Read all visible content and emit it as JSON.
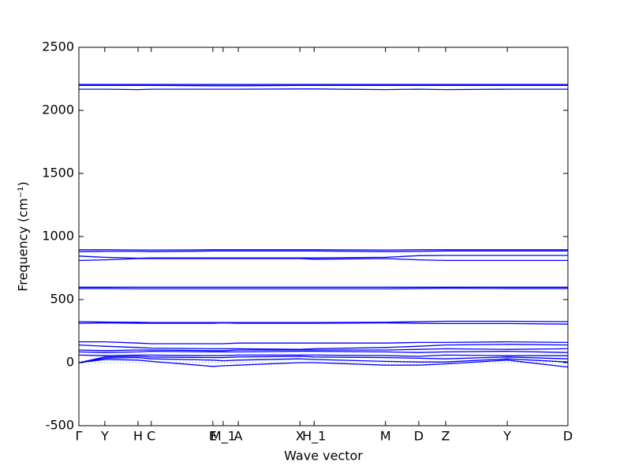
{
  "chart_data": {
    "type": "line",
    "xlabel": "Wave vector",
    "ylabel": "Frequency (cm⁻¹)",
    "x": [
      0,
      0.053,
      0.121,
      0.148,
      0.274,
      0.295,
      0.326,
      0.452,
      0.481,
      0.627,
      0.695,
      0.75,
      0.876,
      1.0
    ],
    "xlim": [
      0,
      1.0
    ],
    "xticks": [
      {
        "value": 0,
        "label": "Γ"
      },
      {
        "value": 0.053,
        "label": "Y"
      },
      {
        "value": 0.121,
        "label": "H"
      },
      {
        "value": 0.148,
        "label": "C"
      },
      {
        "value": 0.274,
        "label": "E"
      },
      {
        "value": 0.295,
        "label": "M_1"
      },
      {
        "value": 0.326,
        "label": "A"
      },
      {
        "value": 0.452,
        "label": "X"
      },
      {
        "value": 0.481,
        "label": "H_1"
      },
      {
        "value": 0.627,
        "label": "M"
      },
      {
        "value": 0.695,
        "label": "D"
      },
      {
        "value": 0.75,
        "label": "Z"
      },
      {
        "value": 0.876,
        "label": "Y"
      },
      {
        "value": 1.0,
        "label": "D"
      }
    ],
    "ylim": [
      -500,
      2500
    ],
    "yticks": [
      -500,
      0,
      500,
      1000,
      1500,
      2000,
      2500
    ],
    "series": [
      {
        "color": "#0000ff",
        "values": [
          0,
          25,
          20,
          10,
          -30,
          -25,
          -20,
          0,
          0,
          -20,
          -20,
          -10,
          20,
          -35
        ]
      },
      {
        "color": "#0000ff",
        "values": [
          0,
          35,
          40,
          30,
          20,
          15,
          20,
          30,
          25,
          10,
          5,
          5,
          30,
          5
        ]
      },
      {
        "color": "#0000ff",
        "values": [
          0,
          45,
          50,
          45,
          40,
          40,
          45,
          50,
          45,
          40,
          35,
          30,
          45,
          30
        ]
      },
      {
        "color": "#0000ff",
        "values": [
          60,
          55,
          60,
          60,
          55,
          55,
          60,
          60,
          60,
          55,
          50,
          60,
          55,
          55
        ]
      },
      {
        "color": "#0000ff",
        "values": [
          85,
          80,
          85,
          90,
          85,
          85,
          85,
          90,
          90,
          85,
          80,
          85,
          90,
          80
        ]
      },
      {
        "color": "#0000ff",
        "values": [
          100,
          95,
          100,
          100,
          95,
          95,
          100,
          100,
          100,
          100,
          105,
          110,
          105,
          110
        ]
      },
      {
        "color": "#0000ff",
        "values": [
          140,
          130,
          120,
          115,
          110,
          110,
          110,
          105,
          110,
          120,
          130,
          140,
          145,
          140
        ]
      },
      {
        "color": "#0000ff",
        "values": [
          165,
          165,
          155,
          150,
          150,
          150,
          155,
          155,
          155,
          155,
          160,
          160,
          165,
          160
        ]
      },
      {
        "color": "#0000ff",
        "values": [
          312,
          315,
          312,
          312,
          312,
          315,
          312,
          312,
          312,
          315,
          312,
          310,
          310,
          305
        ]
      },
      {
        "color": "#0000ff",
        "values": [
          325,
          322,
          320,
          318,
          318,
          318,
          318,
          318,
          318,
          320,
          325,
          328,
          328,
          325
        ]
      },
      {
        "color": "#0000ff",
        "values": [
          588,
          588,
          585,
          585,
          585,
          585,
          585,
          585,
          585,
          585,
          588,
          590,
          588,
          588
        ]
      },
      {
        "color": "#0000ff",
        "values": [
          598,
          598,
          598,
          598,
          598,
          598,
          598,
          598,
          598,
          598,
          598,
          598,
          598,
          598
        ]
      },
      {
        "color": "#0000ff",
        "values": [
          810,
          815,
          825,
          825,
          825,
          825,
          825,
          825,
          820,
          825,
          815,
          810,
          810,
          810
        ]
      },
      {
        "color": "#0000ff",
        "values": [
          845,
          835,
          828,
          830,
          830,
          830,
          830,
          830,
          830,
          835,
          848,
          850,
          850,
          850
        ]
      },
      {
        "color": "#0000ff",
        "values": [
          880,
          882,
          882,
          880,
          885,
          885,
          885,
          885,
          885,
          880,
          882,
          885,
          885,
          885
        ]
      },
      {
        "color": "#0000ff",
        "values": [
          895,
          895,
          893,
          893,
          895,
          895,
          895,
          895,
          895,
          893,
          895,
          895,
          895,
          895
        ]
      },
      {
        "color": "#0000ff",
        "values": [
          2168,
          2168,
          2165,
          2168,
          2168,
          2168,
          2168,
          2170,
          2170,
          2165,
          2168,
          2165,
          2168,
          2168
        ]
      },
      {
        "color": "#0000ff",
        "values": [
          2198,
          2198,
          2198,
          2198,
          2195,
          2195,
          2195,
          2198,
          2198,
          2198,
          2198,
          2198,
          2198,
          2198
        ]
      },
      {
        "color": "#0000ff",
        "values": [
          2205,
          2205,
          2205,
          2205,
          2205,
          2205,
          2205,
          2205,
          2205,
          2205,
          2205,
          2205,
          2205,
          2205
        ]
      }
    ]
  }
}
